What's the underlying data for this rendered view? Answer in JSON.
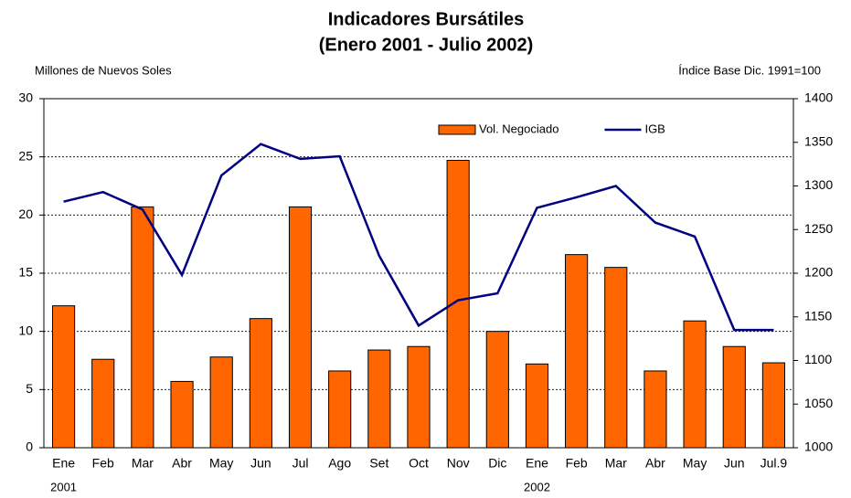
{
  "chart_data": {
    "type": "bar_line",
    "title": "Indicadores Bursátiles",
    "subtitle": "(Enero 2001 - Julio 2002)",
    "ylabel": "Millones de Nuevos Soles",
    "y2label": "Índice Base Dic. 1991=100",
    "categories": [
      "Ene",
      "Feb",
      "Mar",
      "Abr",
      "May",
      "Jun",
      "Jul",
      "Ago",
      "Set",
      "Oct",
      "Nov",
      "Dic",
      "Ene",
      "Feb",
      "Mar",
      "Abr",
      "May",
      "Jun",
      "Jul.9"
    ],
    "year_labels": [
      "2001",
      null,
      null,
      null,
      null,
      null,
      null,
      null,
      null,
      null,
      null,
      null,
      "2002",
      null,
      null,
      null,
      null,
      null,
      null
    ],
    "series": [
      {
        "name": "Vol. Negociado",
        "type": "bar",
        "color": "#ff6600",
        "values": [
          12.2,
          7.6,
          20.7,
          5.7,
          7.8,
          11.1,
          20.7,
          6.6,
          8.4,
          8.7,
          24.7,
          10.0,
          7.2,
          16.6,
          15.5,
          6.6,
          10.9,
          8.7,
          7.3
        ]
      },
      {
        "name": "IGB",
        "type": "line",
        "axis": "y2",
        "color": "#000080",
        "values": [
          1282,
          1293,
          1273,
          1198,
          1312,
          1348,
          1331,
          1334,
          1220,
          1140,
          1169,
          1177,
          1275,
          1287,
          1300,
          1258,
          1242,
          1135,
          1135
        ]
      }
    ],
    "ylim": [
      0,
      30
    ],
    "yticks": [
      0,
      5,
      10,
      15,
      20,
      25,
      30
    ],
    "y2lim": [
      1000,
      1400
    ],
    "y2ticks": [
      1000,
      1050,
      1100,
      1150,
      1200,
      1250,
      1300,
      1350,
      1400
    ],
    "grid": true,
    "legend": "top"
  }
}
